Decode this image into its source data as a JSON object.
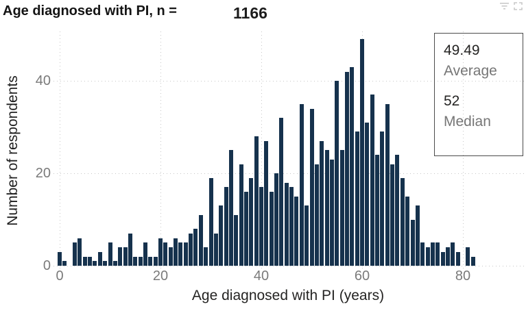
{
  "title": {
    "text": "Age diagnosed with PI, n =",
    "count": "1166"
  },
  "stats_box": {
    "average_value": "49.49",
    "average_label": "Average",
    "median_value": "52",
    "median_label": "Median"
  },
  "header_icons": [
    {
      "name": "filter-icon"
    },
    {
      "name": "focus-mode-icon"
    }
  ],
  "chart_data": {
    "type": "bar",
    "title": "Age diagnosed with PI, n = 1166",
    "xlabel": "Age diagnosed with PI (years)",
    "ylabel": "Number of respondents",
    "x_ticks": [
      0,
      20,
      40,
      60,
      80
    ],
    "y_ticks": [
      0,
      20,
      40
    ],
    "xlim": [
      -1,
      91
    ],
    "ylim": [
      0,
      50
    ],
    "grid": "dotted",
    "bar_color": "#16324D",
    "x": [
      0,
      1,
      2,
      3,
      4,
      5,
      6,
      7,
      8,
      9,
      10,
      11,
      12,
      13,
      14,
      15,
      16,
      17,
      18,
      19,
      20,
      21,
      22,
      23,
      24,
      25,
      26,
      27,
      28,
      29,
      30,
      31,
      32,
      33,
      34,
      35,
      36,
      37,
      38,
      39,
      40,
      41,
      42,
      43,
      44,
      45,
      46,
      47,
      48,
      49,
      50,
      51,
      52,
      53,
      54,
      55,
      56,
      57,
      58,
      59,
      60,
      61,
      62,
      63,
      64,
      65,
      66,
      67,
      68,
      69,
      70,
      71,
      72,
      73,
      74,
      75,
      76,
      77,
      78,
      79,
      80,
      81,
      82
    ],
    "values": [
      3,
      1,
      0,
      5,
      6,
      2,
      2,
      1,
      3,
      1,
      5,
      1,
      4,
      4,
      7,
      2,
      2,
      5,
      2,
      2,
      6,
      5,
      4,
      6,
      5,
      5,
      7,
      8,
      11,
      4,
      19,
      7,
      13,
      17,
      25,
      11,
      22,
      16,
      19,
      28,
      17,
      27,
      16,
      20,
      32,
      18,
      17,
      15,
      35,
      13,
      34,
      22,
      27,
      25,
      23,
      40,
      25,
      42,
      43,
      29,
      49,
      31,
      37,
      24,
      29,
      35,
      22,
      24,
      19,
      15,
      10,
      13,
      5,
      4,
      5,
      5,
      3,
      4,
      5,
      3,
      0,
      4,
      2
    ]
  }
}
